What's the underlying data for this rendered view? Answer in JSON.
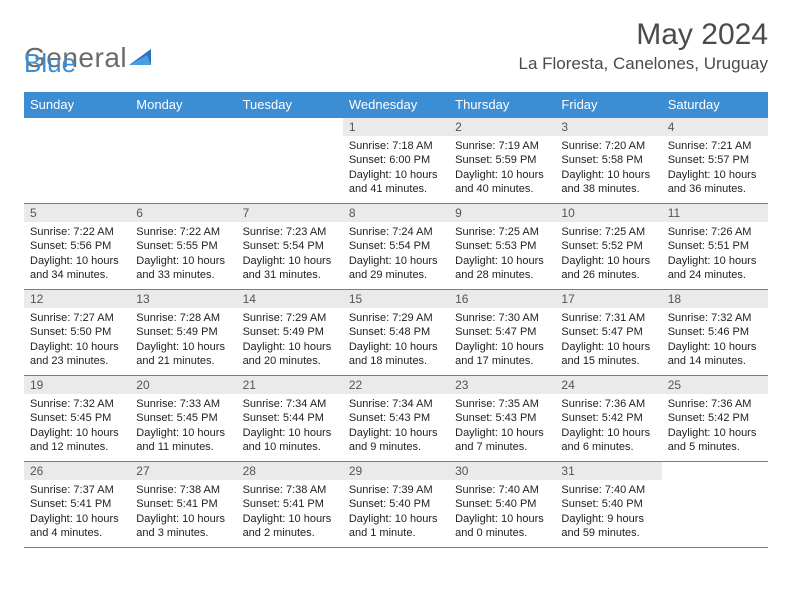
{
  "logo": {
    "text1": "General",
    "text2": "Blue"
  },
  "title": "May 2024",
  "location": "La Floresta, Canelones, Uruguay",
  "day_headers": [
    "Sunday",
    "Monday",
    "Tuesday",
    "Wednesday",
    "Thursday",
    "Friday",
    "Saturday"
  ],
  "colors": {
    "header_bg": "#3b8dd4",
    "header_text": "#ffffff",
    "daynum_bg": "#eaeaea",
    "daynum_text": "#555555",
    "body_text": "#222222",
    "rule": "#3b8dd4"
  },
  "grid": [
    [
      null,
      null,
      null,
      {
        "n": "1",
        "sunrise": "7:18 AM",
        "sunset": "6:00 PM",
        "daylight": "10 hours and 41 minutes."
      },
      {
        "n": "2",
        "sunrise": "7:19 AM",
        "sunset": "5:59 PM",
        "daylight": "10 hours and 40 minutes."
      },
      {
        "n": "3",
        "sunrise": "7:20 AM",
        "sunset": "5:58 PM",
        "daylight": "10 hours and 38 minutes."
      },
      {
        "n": "4",
        "sunrise": "7:21 AM",
        "sunset": "5:57 PM",
        "daylight": "10 hours and 36 minutes."
      }
    ],
    [
      {
        "n": "5",
        "sunrise": "7:22 AM",
        "sunset": "5:56 PM",
        "daylight": "10 hours and 34 minutes."
      },
      {
        "n": "6",
        "sunrise": "7:22 AM",
        "sunset": "5:55 PM",
        "daylight": "10 hours and 33 minutes."
      },
      {
        "n": "7",
        "sunrise": "7:23 AM",
        "sunset": "5:54 PM",
        "daylight": "10 hours and 31 minutes."
      },
      {
        "n": "8",
        "sunrise": "7:24 AM",
        "sunset": "5:54 PM",
        "daylight": "10 hours and 29 minutes."
      },
      {
        "n": "9",
        "sunrise": "7:25 AM",
        "sunset": "5:53 PM",
        "daylight": "10 hours and 28 minutes."
      },
      {
        "n": "10",
        "sunrise": "7:25 AM",
        "sunset": "5:52 PM",
        "daylight": "10 hours and 26 minutes."
      },
      {
        "n": "11",
        "sunrise": "7:26 AM",
        "sunset": "5:51 PM",
        "daylight": "10 hours and 24 minutes."
      }
    ],
    [
      {
        "n": "12",
        "sunrise": "7:27 AM",
        "sunset": "5:50 PM",
        "daylight": "10 hours and 23 minutes."
      },
      {
        "n": "13",
        "sunrise": "7:28 AM",
        "sunset": "5:49 PM",
        "daylight": "10 hours and 21 minutes."
      },
      {
        "n": "14",
        "sunrise": "7:29 AM",
        "sunset": "5:49 PM",
        "daylight": "10 hours and 20 minutes."
      },
      {
        "n": "15",
        "sunrise": "7:29 AM",
        "sunset": "5:48 PM",
        "daylight": "10 hours and 18 minutes."
      },
      {
        "n": "16",
        "sunrise": "7:30 AM",
        "sunset": "5:47 PM",
        "daylight": "10 hours and 17 minutes."
      },
      {
        "n": "17",
        "sunrise": "7:31 AM",
        "sunset": "5:47 PM",
        "daylight": "10 hours and 15 minutes."
      },
      {
        "n": "18",
        "sunrise": "7:32 AM",
        "sunset": "5:46 PM",
        "daylight": "10 hours and 14 minutes."
      }
    ],
    [
      {
        "n": "19",
        "sunrise": "7:32 AM",
        "sunset": "5:45 PM",
        "daylight": "10 hours and 12 minutes."
      },
      {
        "n": "20",
        "sunrise": "7:33 AM",
        "sunset": "5:45 PM",
        "daylight": "10 hours and 11 minutes."
      },
      {
        "n": "21",
        "sunrise": "7:34 AM",
        "sunset": "5:44 PM",
        "daylight": "10 hours and 10 minutes."
      },
      {
        "n": "22",
        "sunrise": "7:34 AM",
        "sunset": "5:43 PM",
        "daylight": "10 hours and 9 minutes."
      },
      {
        "n": "23",
        "sunrise": "7:35 AM",
        "sunset": "5:43 PM",
        "daylight": "10 hours and 7 minutes."
      },
      {
        "n": "24",
        "sunrise": "7:36 AM",
        "sunset": "5:42 PM",
        "daylight": "10 hours and 6 minutes."
      },
      {
        "n": "25",
        "sunrise": "7:36 AM",
        "sunset": "5:42 PM",
        "daylight": "10 hours and 5 minutes."
      }
    ],
    [
      {
        "n": "26",
        "sunrise": "7:37 AM",
        "sunset": "5:41 PM",
        "daylight": "10 hours and 4 minutes."
      },
      {
        "n": "27",
        "sunrise": "7:38 AM",
        "sunset": "5:41 PM",
        "daylight": "10 hours and 3 minutes."
      },
      {
        "n": "28",
        "sunrise": "7:38 AM",
        "sunset": "5:41 PM",
        "daylight": "10 hours and 2 minutes."
      },
      {
        "n": "29",
        "sunrise": "7:39 AM",
        "sunset": "5:40 PM",
        "daylight": "10 hours and 1 minute."
      },
      {
        "n": "30",
        "sunrise": "7:40 AM",
        "sunset": "5:40 PM",
        "daylight": "10 hours and 0 minutes."
      },
      {
        "n": "31",
        "sunrise": "7:40 AM",
        "sunset": "5:40 PM",
        "daylight": "9 hours and 59 minutes."
      },
      null
    ]
  ],
  "labels": {
    "sunrise": "Sunrise:",
    "sunset": "Sunset:",
    "daylight": "Daylight:"
  }
}
